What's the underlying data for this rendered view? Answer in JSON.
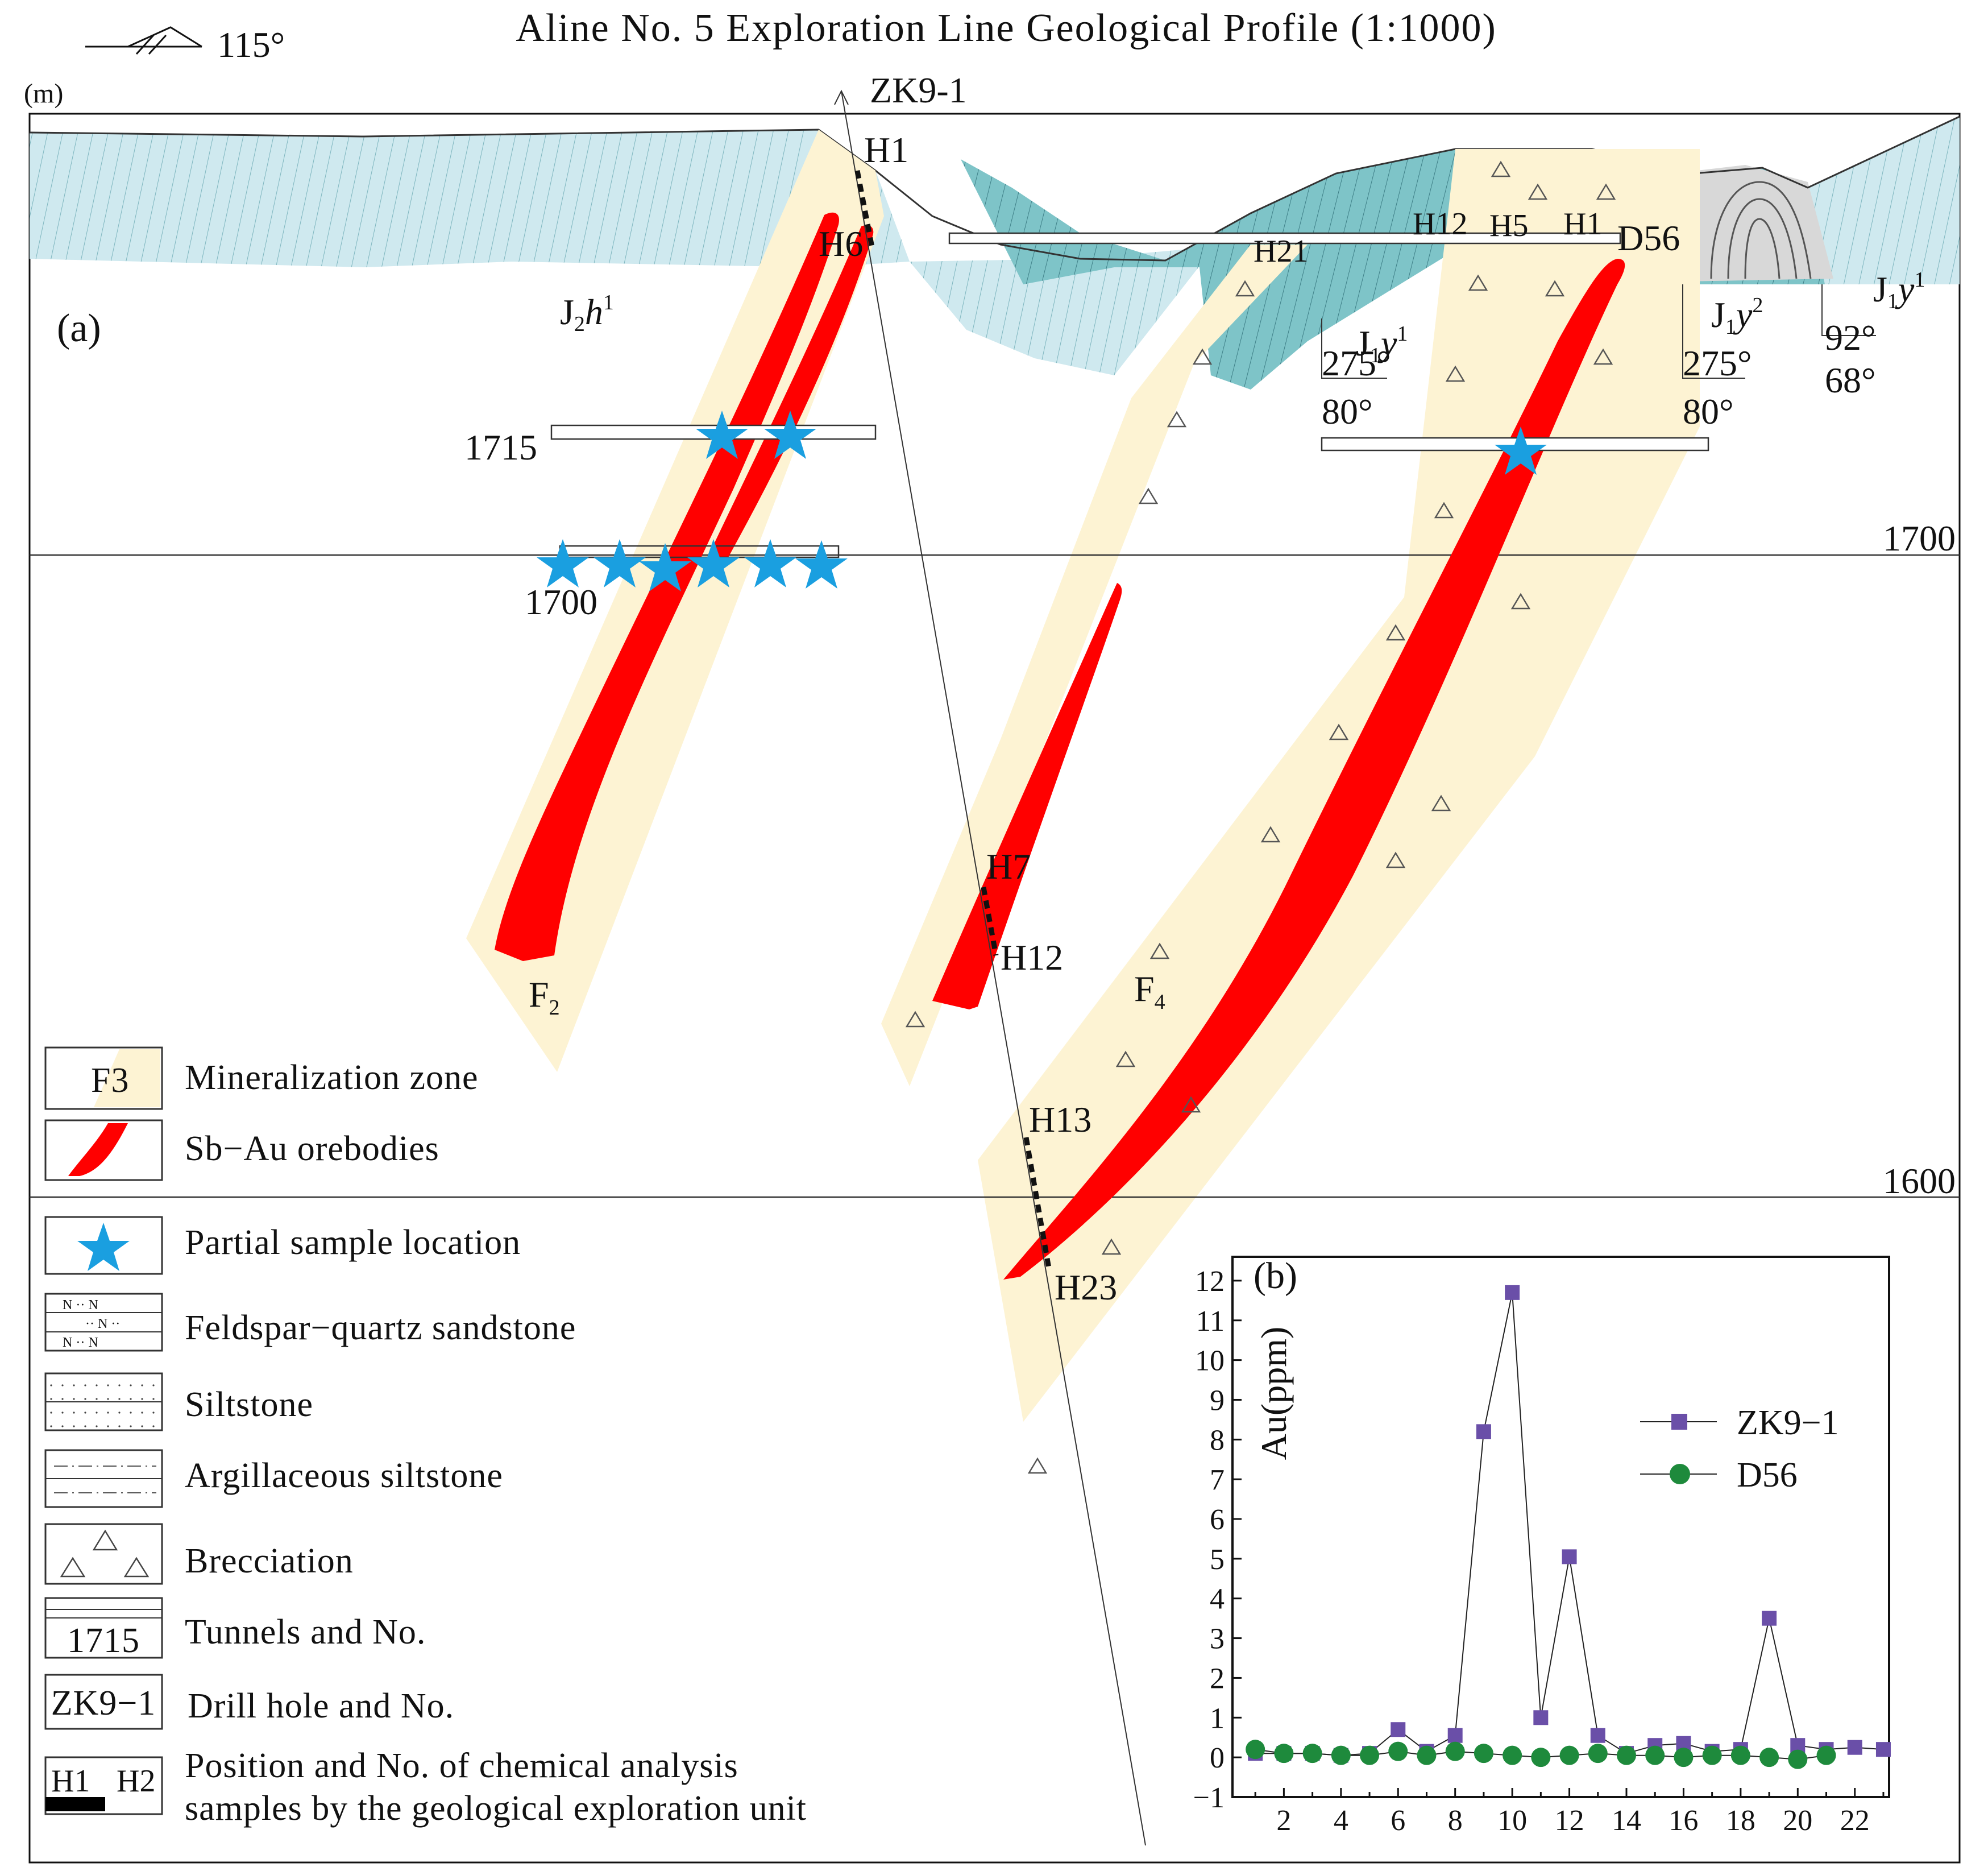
{
  "header": {
    "strike_azimuth": "115°",
    "title": "Aline No. 5 Exploration Line Geological Profile (1:1000)",
    "unit": "(m)"
  },
  "panel_a": {
    "label": "(a)",
    "elevation_labels": [
      "1700",
      "1600"
    ],
    "drill_hole": "ZK9-1",
    "sample_labels": {
      "h1_top": "H1",
      "h6": "H6",
      "h7": "H7",
      "h12_mid": "H12",
      "h13": "H13",
      "h23": "H23",
      "h21": "H21",
      "h12_tunnel": "H12",
      "h5": "H5",
      "h1_tunnel": "H1",
      "d56": "D56"
    },
    "tunnels": {
      "t1715": "1715",
      "t1700": "1700"
    },
    "faults": {
      "f2": "F",
      "f2_sub": "2",
      "f4": "F",
      "f4_sub": "4"
    },
    "strata": {
      "j2h1_main": "J",
      "j2h1_sub": "2",
      "j2h1_h": "h",
      "j2h1_sup": "1",
      "j1y1_main": "J",
      "j1y1_sub": "1",
      "j1y1_y": "y",
      "j1y1_sup": "1",
      "j1y2_main": "J",
      "j1y2_sub": "1",
      "j1y2_y": "y",
      "j1y2_sup": "2"
    },
    "attitudes": {
      "a1_dir": "275°",
      "a1_dip": "80°",
      "a2_dir": "275°",
      "a2_dip": "80°",
      "a3_dir": "92°",
      "a3_dip": "68°"
    }
  },
  "legend": {
    "f3_swatch": "F3",
    "items": {
      "mineralization": "Mineralization  zone",
      "orebodies": "Sb−Au  orebodies",
      "sample": "Partial sample  location",
      "feldspar": "Feldspar−quartz sandstone",
      "siltstone": "Siltstone",
      "argillaceous": "Argillaceous siltstone",
      "brecciation": "Brecciation",
      "tunnels": "Tunnels and No.",
      "drill": "Drill hole and No.",
      "chem_line1": "Position and No. of chemical analysis",
      "chem_line2": "samples by the geological exploration unit"
    },
    "tunnel_swatch": "1715",
    "drill_swatch": "ZK9−1",
    "chem_swatch_a": "H1",
    "chem_swatch_b": "H2"
  },
  "colors": {
    "orebody": "#ff0000",
    "mineral_zone": "#fdf3d3",
    "star": "#1a9fe0",
    "feldspar": "#7ec4c8",
    "siltstone": "#cfe9ef",
    "j1y2": "#d8d8d8",
    "zk_series": "#6a4fa8",
    "d56_series": "#1e8a3c"
  },
  "chart_data": {
    "type": "line",
    "panel_label": "(b)",
    "title": "",
    "xlabel": "",
    "ylabel": "Au(ppm)",
    "xlim": [
      0.2,
      23.2
    ],
    "ylim": [
      -1,
      12.6
    ],
    "x_ticks": [
      2,
      4,
      6,
      8,
      10,
      12,
      14,
      16,
      18,
      20,
      22
    ],
    "y_ticks": [
      -1,
      0,
      1,
      2,
      3,
      4,
      5,
      6,
      7,
      8,
      9,
      10,
      11,
      12
    ],
    "legend_position": "middle-right",
    "series": [
      {
        "name": "ZK9−1",
        "marker": "square",
        "x": [
          1,
          2,
          3,
          4,
          5,
          6,
          7,
          8,
          9,
          10,
          11,
          12,
          13,
          14,
          15,
          16,
          17,
          18,
          19,
          20,
          21,
          22,
          23
        ],
        "values": [
          0.1,
          0.1,
          0.1,
          0.05,
          0.1,
          0.7,
          0.15,
          0.55,
          8.2,
          11.7,
          1.0,
          5.05,
          0.55,
          0.1,
          0.3,
          0.35,
          0.15,
          0.2,
          3.5,
          0.3,
          0.2,
          0.25,
          0.2
        ]
      },
      {
        "name": "D56",
        "marker": "circle",
        "x": [
          1,
          2,
          3,
          4,
          5,
          6,
          7,
          8,
          9,
          10,
          11,
          12,
          13,
          14,
          15,
          16,
          17,
          18,
          19,
          20,
          21
        ],
        "values": [
          0.2,
          0.1,
          0.1,
          0.05,
          0.05,
          0.15,
          0.05,
          0.15,
          0.1,
          0.05,
          0.0,
          0.05,
          0.1,
          0.05,
          0.05,
          0.0,
          0.05,
          0.05,
          0.0,
          -0.05,
          0.05
        ]
      }
    ]
  }
}
